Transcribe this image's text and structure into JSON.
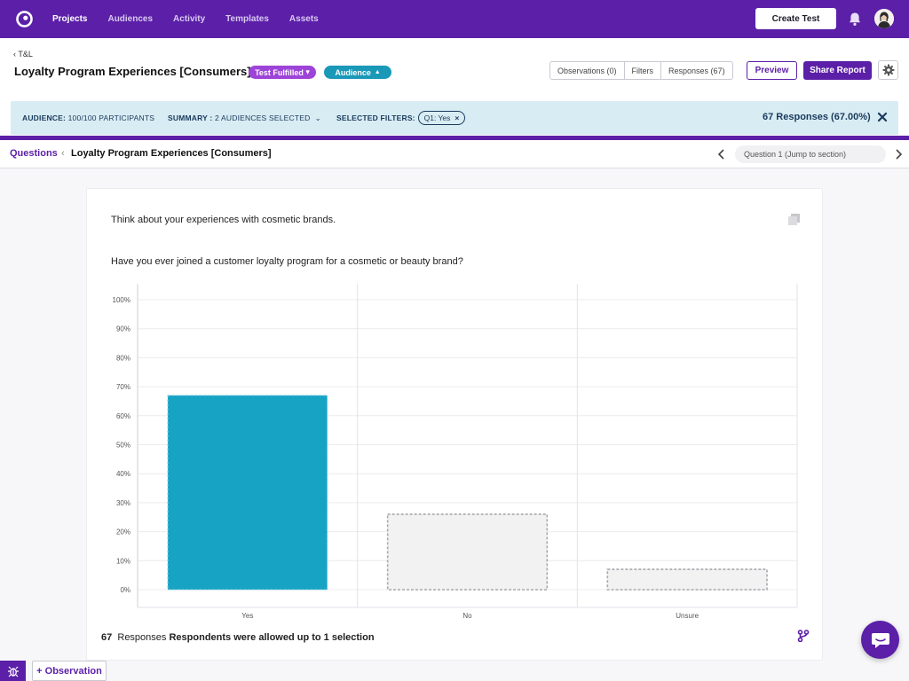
{
  "nav": {
    "links": [
      "Projects",
      "Audiences",
      "Activity",
      "Templates",
      "Assets"
    ],
    "active": "Projects",
    "create_test": "Create Test"
  },
  "header": {
    "back": "T&L",
    "title": "Loyalty Program Experiences [Consumers]",
    "status_pill": "Test Fulfilled",
    "audience_pill": "Audience",
    "tabs": [
      "Observations (0)",
      "Filters",
      "Responses (67)"
    ],
    "preview": "Preview",
    "share": "Share Report"
  },
  "filterbar": {
    "audience_label": "AUDIENCE:",
    "audience_value": "100/100 PARTICIPANTS",
    "summary_label": "SUMMARY :",
    "summary_value": "2 AUDIENCES SELECTED",
    "filters_label": "SELECTED FILTERS:",
    "filter_chip": "Q1: Yes",
    "responses": "67 Responses (67.00%)"
  },
  "subnav": {
    "questions": "Questions",
    "current": "Loyalty Program Experiences [Consumers]",
    "jump": "Question 1 (Jump to section)"
  },
  "question": {
    "intro": "Think about your experiences with cosmetic brands.",
    "text": "Have you ever joined a customer loyalty program for a cosmetic or beauty brand?"
  },
  "chart_data": {
    "type": "bar",
    "categories": [
      "Yes",
      "No",
      "Unsure"
    ],
    "values": [
      67,
      26,
      7
    ],
    "highlighted": "Yes",
    "ylim": [
      0,
      100
    ],
    "yticks": [
      "0%",
      "10%",
      "20%",
      "30%",
      "40%",
      "50%",
      "60%",
      "70%",
      "80%",
      "90%",
      "100%"
    ],
    "xlabel": "",
    "ylabel": "",
    "grid": true,
    "colors": {
      "highlight": "#16a3c4",
      "muted": "#f2f2f2"
    }
  },
  "footer": {
    "count": "67",
    "responses_label": "Responses",
    "selection_note": "Respondents were allowed up to 1 selection"
  },
  "bottom": {
    "observation": "+ Observation"
  },
  "colors": {
    "brand": "#5b1fa8",
    "accent": "#1998b8",
    "status": "#9d44d8"
  }
}
